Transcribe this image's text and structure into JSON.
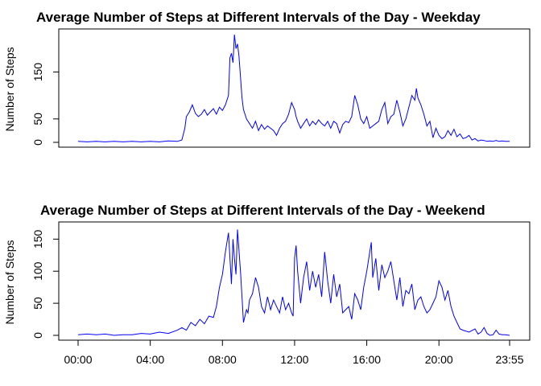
{
  "chart_data": [
    {
      "type": "line",
      "title": "Average Number of Steps at Different Intervals of the Day - Weekday",
      "xlabel": "",
      "ylabel": "Number of Steps",
      "xlim": [
        0,
        1435
      ],
      "ylim": [
        0,
        230
      ],
      "yticks": [
        0,
        50,
        150
      ],
      "show_xticks": false,
      "grid": false,
      "color": "#0000ff",
      "series": [
        {
          "x": [
            0,
            30,
            60,
            90,
            120,
            150,
            180,
            210,
            240,
            270,
            300,
            330,
            345,
            355,
            360,
            370,
            380,
            390,
            400,
            410,
            420,
            430,
            440,
            450,
            460,
            470,
            480,
            490,
            500,
            505,
            510,
            515,
            520,
            525,
            530,
            535,
            540,
            545,
            550,
            560,
            570,
            580,
            590,
            600,
            610,
            620,
            630,
            640,
            650,
            660,
            670,
            680,
            690,
            700,
            710,
            720,
            725,
            730,
            740,
            750,
            760,
            770,
            780,
            790,
            800,
            810,
            820,
            830,
            840,
            850,
            860,
            870,
            880,
            890,
            900,
            910,
            920,
            930,
            940,
            950,
            960,
            970,
            980,
            990,
            1000,
            1010,
            1020,
            1030,
            1040,
            1050,
            1060,
            1070,
            1080,
            1090,
            1100,
            1110,
            1120,
            1125,
            1130,
            1140,
            1150,
            1160,
            1170,
            1180,
            1190,
            1200,
            1210,
            1220,
            1230,
            1240,
            1250,
            1260,
            1270,
            1280,
            1290,
            1300,
            1310,
            1320,
            1330,
            1340,
            1350,
            1360,
            1370,
            1380,
            1390,
            1400,
            1410,
            1420,
            1435
          ],
          "y": [
            2,
            1,
            2,
            1,
            2,
            1,
            2,
            1,
            2,
            1,
            3,
            2,
            5,
            30,
            55,
            65,
            80,
            62,
            55,
            60,
            70,
            58,
            65,
            72,
            60,
            75,
            68,
            80,
            100,
            180,
            190,
            170,
            230,
            200,
            210,
            185,
            140,
            95,
            70,
            50,
            40,
            30,
            45,
            25,
            38,
            28,
            35,
            30,
            25,
            15,
            30,
            40,
            45,
            60,
            85,
            70,
            55,
            45,
            30,
            40,
            50,
            35,
            45,
            38,
            48,
            40,
            35,
            45,
            30,
            45,
            40,
            20,
            38,
            45,
            42,
            55,
            100,
            80,
            50,
            40,
            55,
            30,
            35,
            40,
            45,
            70,
            85,
            40,
            55,
            60,
            90,
            65,
            35,
            50,
            75,
            100,
            90,
            115,
            95,
            80,
            60,
            35,
            45,
            10,
            30,
            15,
            8,
            12,
            25,
            15,
            28,
            12,
            18,
            8,
            10,
            15,
            5,
            8,
            3,
            5,
            4,
            2,
            3,
            2,
            4,
            2,
            3,
            2,
            2
          ]
        }
      ]
    },
    {
      "type": "line",
      "title": "Average Number of Steps at Different Intervals of the Day - Weekend",
      "xlabel": "",
      "ylabel": "Number of Steps",
      "xlim": [
        0,
        1435
      ],
      "ylim": [
        0,
        168
      ],
      "yticks": [
        0,
        50,
        100,
        150
      ],
      "xticks": [
        0,
        240,
        480,
        720,
        960,
        1200,
        1435
      ],
      "xticklabels": [
        "00:00",
        "04:00",
        "08:00",
        "12:00",
        "16:00",
        "20:00",
        "23:55"
      ],
      "grid": false,
      "color": "#0000ff",
      "series": [
        {
          "x": [
            0,
            30,
            60,
            90,
            120,
            150,
            180,
            210,
            240,
            270,
            300,
            330,
            345,
            360,
            375,
            390,
            405,
            420,
            435,
            450,
            460,
            470,
            480,
            490,
            500,
            510,
            515,
            520,
            525,
            530,
            540,
            545,
            550,
            560,
            565,
            570,
            580,
            590,
            600,
            610,
            620,
            630,
            640,
            650,
            660,
            670,
            680,
            690,
            700,
            710,
            715,
            720,
            725,
            730,
            740,
            750,
            760,
            770,
            780,
            790,
            800,
            810,
            820,
            830,
            840,
            850,
            860,
            870,
            880,
            890,
            900,
            910,
            920,
            930,
            940,
            950,
            960,
            970,
            975,
            980,
            990,
            1000,
            1010,
            1020,
            1030,
            1040,
            1050,
            1060,
            1070,
            1080,
            1090,
            1100,
            1110,
            1120,
            1130,
            1140,
            1150,
            1160,
            1170,
            1180,
            1190,
            1200,
            1210,
            1220,
            1230,
            1240,
            1250,
            1260,
            1270,
            1280,
            1300,
            1320,
            1330,
            1340,
            1350,
            1360,
            1370,
            1380,
            1390,
            1400,
            1410,
            1420,
            1435
          ],
          "y": [
            1,
            2,
            1,
            2,
            0,
            1,
            1,
            3,
            2,
            5,
            3,
            8,
            12,
            8,
            20,
            15,
            25,
            18,
            30,
            28,
            45,
            75,
            95,
            130,
            160,
            80,
            150,
            120,
            95,
            165,
            100,
            60,
            20,
            40,
            35,
            55,
            65,
            90,
            75,
            45,
            35,
            60,
            40,
            55,
            45,
            35,
            60,
            40,
            50,
            35,
            30,
            120,
            140,
            100,
            50,
            90,
            115,
            70,
            100,
            75,
            95,
            60,
            130,
            85,
            50,
            95,
            60,
            80,
            35,
            40,
            45,
            25,
            65,
            55,
            40,
            75,
            100,
            130,
            145,
            90,
            120,
            70,
            110,
            90,
            100,
            115,
            85,
            55,
            90,
            45,
            70,
            65,
            80,
            40,
            55,
            60,
            45,
            35,
            40,
            50,
            60,
            85,
            75,
            55,
            70,
            45,
            30,
            20,
            10,
            8,
            5,
            10,
            2,
            5,
            12,
            3,
            0,
            1,
            8,
            2,
            1,
            1,
            0
          ]
        }
      ]
    }
  ]
}
